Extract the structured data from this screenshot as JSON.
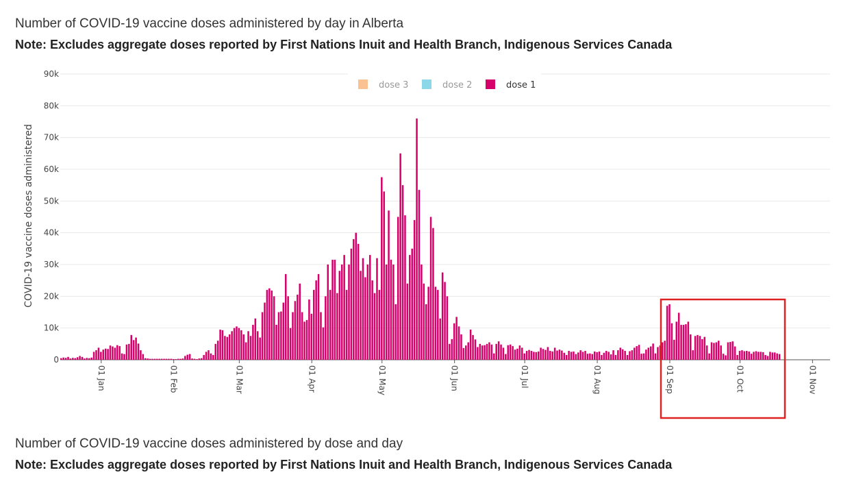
{
  "titles": {
    "chart1_title": "Number of COVID-19 vaccine doses administered by day in Alberta",
    "chart1_note": "Note: Excludes aggregate doses reported by First Nations Inuit and Health Branch, Indigenous Services Canada",
    "chart2_title": "Number of COVID-19 vaccine doses administered by dose and day",
    "chart2_note": "Note: Excludes aggregate doses reported by First Nations Inuit and Health Branch, Indigenous Services Canada"
  },
  "colors": {
    "dose1": "#d6006b",
    "dose2": "#7fd3e6",
    "dose3": "#fbbb85",
    "highlight": "#dd2222"
  },
  "chart_data": {
    "type": "bar",
    "title": "",
    "ylabel": "COVID-19 vaccine doses administered",
    "xlabel": "",
    "ylim": [
      0,
      90000
    ],
    "yticks": [
      0,
      10000,
      20000,
      30000,
      40000,
      50000,
      60000,
      70000,
      80000,
      90000
    ],
    "ytick_labels": [
      "0",
      "10k",
      "20k",
      "30k",
      "40k",
      "50k",
      "60k",
      "70k",
      "80k",
      "90k"
    ],
    "xticks": [
      "01 Jan",
      "01 Feb",
      "01 Mar",
      "01 Apr",
      "01 May",
      "01 Jun",
      "01 Jul",
      "01 Aug",
      "01 Sep",
      "01 Oct",
      "01 Nov"
    ],
    "legend": {
      "placement": "top-center",
      "entries": [
        {
          "name": "dose 3",
          "active": false
        },
        {
          "name": "dose 2",
          "active": false
        },
        {
          "name": "dose 1",
          "active": true
        }
      ]
    },
    "series": [
      {
        "name": "dose 1",
        "date_range": [
          "2020-12-15",
          "2021-11-08"
        ],
        "values": [
          500,
          700,
          600,
          900,
          400,
          600,
          500,
          800,
          1200,
          900,
          400,
          600,
          500,
          700,
          2500,
          3000,
          3800,
          2500,
          3200,
          3500,
          3400,
          4500,
          4200,
          3800,
          4600,
          4300,
          2000,
          1800,
          4800,
          5000,
          7800,
          6200,
          7000,
          5100,
          3000,
          1800,
          500,
          400,
          300,
          300,
          300,
          300,
          300,
          300,
          300,
          300,
          300,
          300,
          200,
          200,
          300,
          300,
          400,
          1200,
          1600,
          1800,
          400,
          300,
          200,
          400,
          500,
          1500,
          2500,
          3000,
          2000,
          1500,
          5000,
          6000,
          9500,
          9300,
          7500,
          7200,
          8000,
          9000,
          10000,
          10500,
          10000,
          9300,
          8000,
          5500,
          9000,
          7500,
          11000,
          13000,
          9000,
          7000,
          15000,
          18000,
          22000,
          22500,
          21800,
          20000,
          11000,
          15000,
          15200,
          18000,
          27000,
          20000,
          10000,
          15000,
          18500,
          20500,
          24000,
          15000,
          12000,
          12500,
          19000,
          14500,
          22000,
          25000,
          27000,
          15000,
          10200,
          20000,
          30000,
          22000,
          31500,
          31500,
          21000,
          28000,
          30000,
          33000,
          22000,
          30000,
          35000,
          38000,
          40000,
          36500,
          28000,
          32000,
          26000,
          30000,
          33000,
          25000,
          21000,
          32000,
          22000,
          57500,
          53000,
          30000,
          47000,
          31500,
          30000,
          17500,
          45000,
          65000,
          55000,
          45500,
          24000,
          33000,
          35000,
          44000,
          76000,
          53500,
          30000,
          24000,
          17500,
          23000,
          45000,
          41500,
          23000,
          22000,
          13000,
          27500,
          24500,
          20000,
          5000,
          6500,
          11500,
          13500,
          10500,
          8000,
          3700,
          4500,
          5500,
          9500,
          7800,
          6400,
          4000,
          5000,
          4500,
          4600,
          5000,
          5500,
          4800,
          2000,
          5000,
          5800,
          4800,
          3800,
          1800,
          4600,
          4800,
          4300,
          3200,
          3500,
          4500,
          3800,
          2000,
          2800,
          3100,
          2800,
          2500,
          2400,
          2600,
          3800,
          3400,
          3100,
          4000,
          2800,
          2600,
          3800,
          2900,
          3200,
          2900,
          2200,
          1500,
          2800,
          2500,
          2600,
          1800,
          2300,
          3000,
          2500,
          2800,
          1900,
          2000,
          1800,
          2600,
          2400,
          2600,
          1500,
          2200,
          2800,
          2500,
          1700,
          3000,
          1500,
          3000,
          3800,
          3300,
          2800,
          1500,
          2700,
          3000,
          3800,
          4300,
          4700,
          1900,
          2000,
          3200,
          3800,
          4200,
          5100,
          2000,
          4000,
          4500,
          5500,
          6000,
          17000,
          17500,
          11500,
          6300,
          12000,
          14800,
          11000,
          11000,
          11200,
          12000,
          8000,
          3000,
          7500,
          7800,
          7500,
          6500,
          7200,
          4500,
          2000,
          5500,
          5300,
          5500,
          6000,
          4500,
          1900,
          1400,
          5500,
          5600,
          5800,
          4200,
          1500,
          2800,
          3000,
          2700,
          2800,
          2600,
          1900,
          2500,
          2700,
          2500,
          2500,
          2400,
          1500,
          1200,
          2500,
          2300,
          2300,
          2000,
          1800
        ]
      }
    ]
  }
}
